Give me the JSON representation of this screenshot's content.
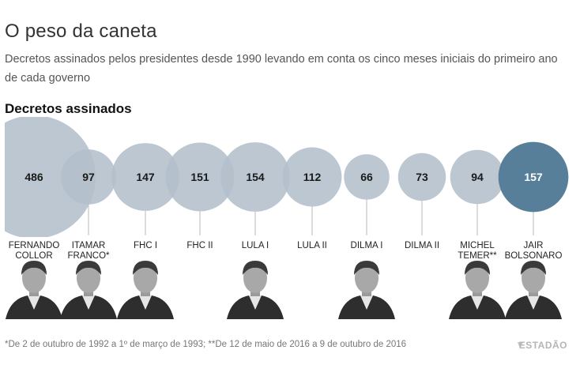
{
  "title": "O peso da caneta",
  "subtitle": "Decretos assinados pelos presidentes desde 1990 levando em conta os cinco meses iniciais do primeiro ano de cada governo",
  "section_label": "Decretos assinados",
  "footnote": "*De 2 de outubro de 1992 a 1º de março de 1993; **De 12 de maio de 2016 a 9 de outubro de 2016",
  "brand": "ESTADÃO",
  "colors": {
    "bubble": "#b4bfcc",
    "overlap": "#8a99ab",
    "highlight": "#587f99",
    "line": "#b8b8b8"
  },
  "chart_data": {
    "type": "bubble",
    "title": "Decretos assinados",
    "categories": [
      [
        "FERNANDO",
        "COLLOR"
      ],
      [
        "ITAMAR",
        "FRANCO*"
      ],
      [
        "FHC I"
      ],
      [
        "FHC II"
      ],
      [
        "LULA I"
      ],
      [
        "LULA II"
      ],
      [
        "DILMA I"
      ],
      [
        "DILMA II"
      ],
      [
        "MICHEL",
        "TEMER**"
      ],
      [
        "JAIR",
        "BOLSONARO"
      ]
    ],
    "values": [
      486,
      97,
      147,
      151,
      154,
      112,
      66,
      73,
      94,
      157
    ],
    "highlight_index": 9
  },
  "photos": [
    {
      "name": "photo-collor",
      "col": 0
    },
    {
      "name": "photo-itamar",
      "col": 1
    },
    {
      "name": "photo-fhc",
      "col": 2
    },
    {
      "name": "photo-lula",
      "col": 4
    },
    {
      "name": "photo-dilma",
      "col": 6
    },
    {
      "name": "photo-temer",
      "col": 8
    },
    {
      "name": "photo-bolsonaro",
      "col": 9
    }
  ]
}
